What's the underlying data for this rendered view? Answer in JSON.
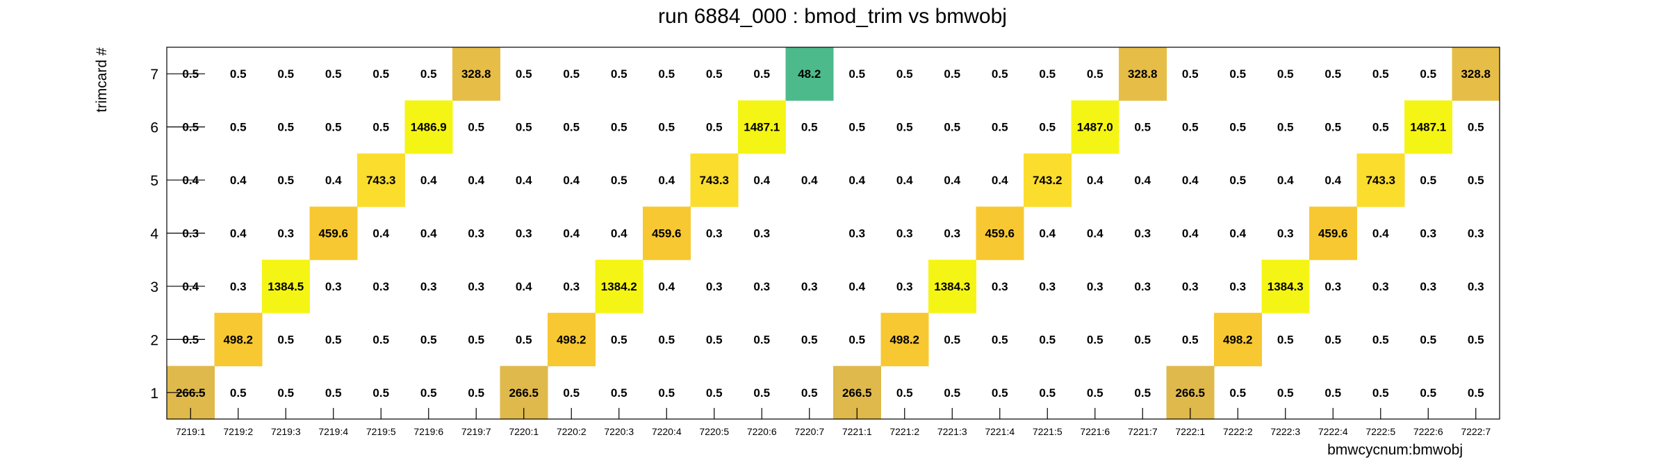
{
  "chart_data": {
    "type": "heatmap",
    "title": "run 6884_000 : bmod_trim vs bmwobj",
    "xlabel": "bmwcycnum:bmwobj",
    "ylabel": "trimcard #",
    "x_categories": [
      "7219:1",
      "7219:2",
      "7219:3",
      "7219:4",
      "7219:5",
      "7219:6",
      "7219:7",
      "7220:1",
      "7220:2",
      "7220:3",
      "7220:4",
      "7220:5",
      "7220:6",
      "7220:7",
      "7221:1",
      "7221:2",
      "7221:3",
      "7221:4",
      "7221:5",
      "7221:6",
      "7221:7",
      "7222:1",
      "7222:2",
      "7222:3",
      "7222:4",
      "7222:5",
      "7222:6",
      "7222:7"
    ],
    "y_categories": [
      "1",
      "2",
      "3",
      "4",
      "5",
      "6",
      "7"
    ],
    "rows": [
      {
        "y": "7",
        "values": [
          "0.5",
          "0.5",
          "0.5",
          "0.5",
          "0.5",
          "0.5",
          "328.8",
          "0.5",
          "0.5",
          "0.5",
          "0.5",
          "0.5",
          "0.5",
          "48.2",
          "0.5",
          "0.5",
          "0.5",
          "0.5",
          "0.5",
          "0.5",
          "328.8",
          "0.5",
          "0.5",
          "0.5",
          "0.5",
          "0.5",
          "0.5",
          "328.8"
        ]
      },
      {
        "y": "6",
        "values": [
          "0.5",
          "0.5",
          "0.5",
          "0.5",
          "0.5",
          "1486.9",
          "0.5",
          "0.5",
          "0.5",
          "0.5",
          "0.5",
          "0.5",
          "1487.1",
          "0.5",
          "0.5",
          "0.5",
          "0.5",
          "0.5",
          "0.5",
          "1487.0",
          "0.5",
          "0.5",
          "0.5",
          "0.5",
          "0.5",
          "0.5",
          "1487.1",
          "0.5"
        ]
      },
      {
        "y": "5",
        "values": [
          "0.4",
          "0.4",
          "0.5",
          "0.4",
          "743.3",
          "0.4",
          "0.4",
          "0.4",
          "0.4",
          "0.5",
          "0.4",
          "743.3",
          "0.4",
          "0.4",
          "0.4",
          "0.4",
          "0.4",
          "0.4",
          "743.2",
          "0.4",
          "0.4",
          "0.4",
          "0.5",
          "0.4",
          "0.4",
          "743.3",
          "0.5",
          "0.5"
        ]
      },
      {
        "y": "4",
        "values": [
          "0.3",
          "0.4",
          "0.3",
          "459.6",
          "0.4",
          "0.4",
          "0.3",
          "0.3",
          "0.4",
          "0.4",
          "459.6",
          "0.3",
          "0.3",
          "",
          "0.3",
          "0.3",
          "0.3",
          "459.6",
          "0.4",
          "0.4",
          "0.3",
          "0.4",
          "0.4",
          "0.3",
          "459.6",
          "0.4",
          "0.3",
          "0.3"
        ]
      },
      {
        "y": "3",
        "values": [
          "0.4",
          "0.3",
          "1384.5",
          "0.3",
          "0.3",
          "0.3",
          "0.3",
          "0.4",
          "0.3",
          "1384.2",
          "0.4",
          "0.3",
          "0.3",
          "0.3",
          "0.4",
          "0.3",
          "1384.3",
          "0.3",
          "0.3",
          "0.3",
          "0.3",
          "0.3",
          "0.3",
          "1384.3",
          "0.3",
          "0.3",
          "0.3",
          "0.3"
        ]
      },
      {
        "y": "2",
        "values": [
          "0.5",
          "498.2",
          "0.5",
          "0.5",
          "0.5",
          "0.5",
          "0.5",
          "0.5",
          "498.2",
          "0.5",
          "0.5",
          "0.5",
          "0.5",
          "0.5",
          "0.5",
          "498.2",
          "0.5",
          "0.5",
          "0.5",
          "0.5",
          "0.5",
          "0.5",
          "498.2",
          "0.5",
          "0.5",
          "0.5",
          "0.5",
          "0.5"
        ]
      },
      {
        "y": "1",
        "values": [
          "266.5",
          "0.5",
          "0.5",
          "0.5",
          "0.5",
          "0.5",
          "0.5",
          "266.5",
          "0.5",
          "0.5",
          "0.5",
          "0.5",
          "0.5",
          "0.5",
          "266.5",
          "0.5",
          "0.5",
          "0.5",
          "0.5",
          "0.5",
          "0.5",
          "266.5",
          "0.5",
          "0.5",
          "0.5",
          "0.5",
          "0.5",
          "0.5"
        ]
      }
    ],
    "colors": {
      "max": "#f5f515",
      "high": "#fbdd2d",
      "mid": "#f8c832",
      "low": "#e6bd46",
      "lower": "#dfb94b",
      "lowest": "#4dba8b"
    },
    "grid": false,
    "legend": "none"
  }
}
